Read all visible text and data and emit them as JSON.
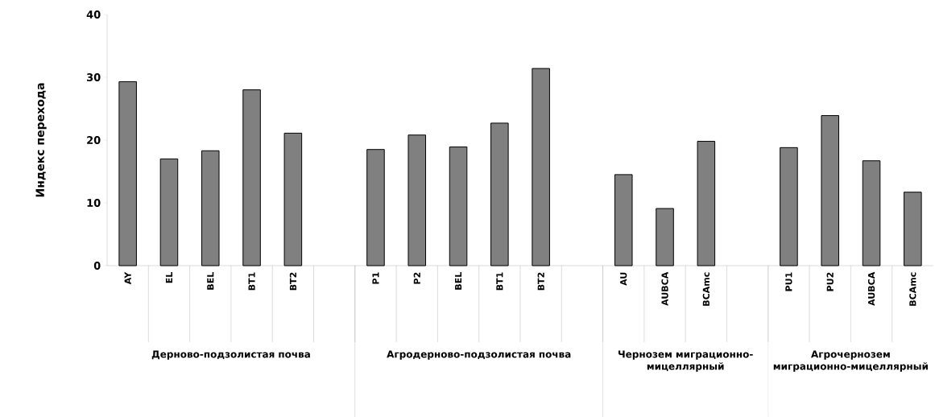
{
  "chart_data": {
    "type": "bar",
    "ylabel": "Индекс перехода",
    "categories": [
      "AY",
      "EL",
      "BEL",
      "BT1",
      "BT2",
      null,
      "P1",
      "P2",
      "BEL",
      "BT1",
      "BT2",
      null,
      "AU",
      "AUBCA",
      "BCAmc",
      null,
      "PU1",
      "PU2",
      "AUBCA",
      "BCAmc"
    ],
    "values": [
      29.3,
      17.0,
      18.3,
      28.0,
      21.1,
      null,
      18.5,
      20.8,
      18.9,
      22.7,
      31.4,
      null,
      14.5,
      9.1,
      19.8,
      null,
      18.8,
      23.9,
      16.7,
      11.7
    ],
    "color": "#808080",
    "ylim": [
      0,
      40
    ],
    "yticks": [
      0,
      10,
      20,
      30,
      40
    ],
    "grid": false,
    "annotations": [
      "Дерново-подзолистая почва",
      "Агродерново-подзолистая почва",
      "Чернозем миграционно-мицеллярный",
      "Агрочернозем миграционно-мицеллярный"
    ]
  }
}
